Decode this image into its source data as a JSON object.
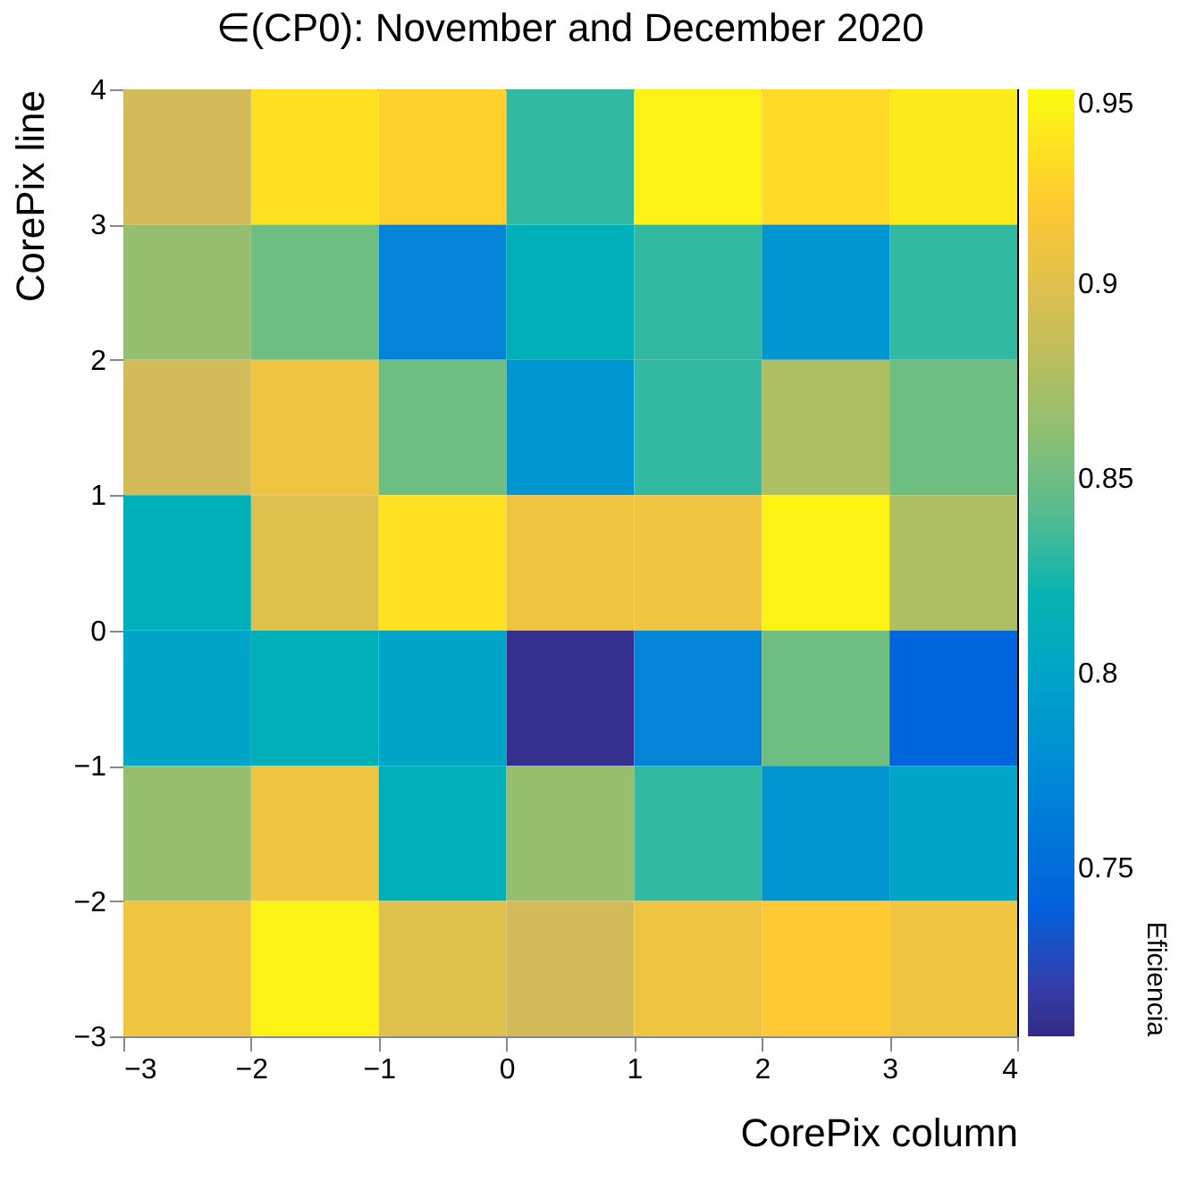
{
  "chart_data": {
    "type": "heatmap",
    "title": "∈(CP0):   November and December 2020",
    "xlabel": "CorePix column",
    "ylabel": "CorePix line",
    "clabel": "Eficiencia",
    "xlim": [
      -3,
      4
    ],
    "xticks": [
      -3,
      -2,
      -1,
      0,
      1,
      2,
      3,
      4
    ],
    "ylim": [
      -3,
      4
    ],
    "yticks": [
      -3,
      -2,
      -1,
      0,
      1,
      2,
      3,
      4
    ],
    "cells": [
      [
        0.89,
        0.935,
        0.925,
        0.83,
        0.945,
        0.93,
        0.94
      ],
      [
        0.865,
        0.85,
        0.77,
        0.815,
        0.83,
        0.785,
        0.83
      ],
      [
        0.89,
        0.91,
        0.85,
        0.785,
        0.83,
        0.875,
        0.85
      ],
      [
        0.815,
        0.9,
        0.935,
        0.91,
        0.91,
        0.945,
        0.875
      ],
      [
        0.8,
        0.815,
        0.8,
        0.71,
        0.77,
        0.85,
        0.745
      ],
      [
        0.865,
        0.91,
        0.815,
        0.865,
        0.83,
        0.785,
        0.8
      ],
      [
        0.91,
        0.945,
        0.9,
        0.89,
        0.91,
        0.92,
        0.91
      ]
    ],
    "clim": [
      0.707,
      0.95
    ],
    "cticks": [
      0.75,
      0.8,
      0.85,
      0.9,
      0.95
    ],
    "grid": false
  }
}
